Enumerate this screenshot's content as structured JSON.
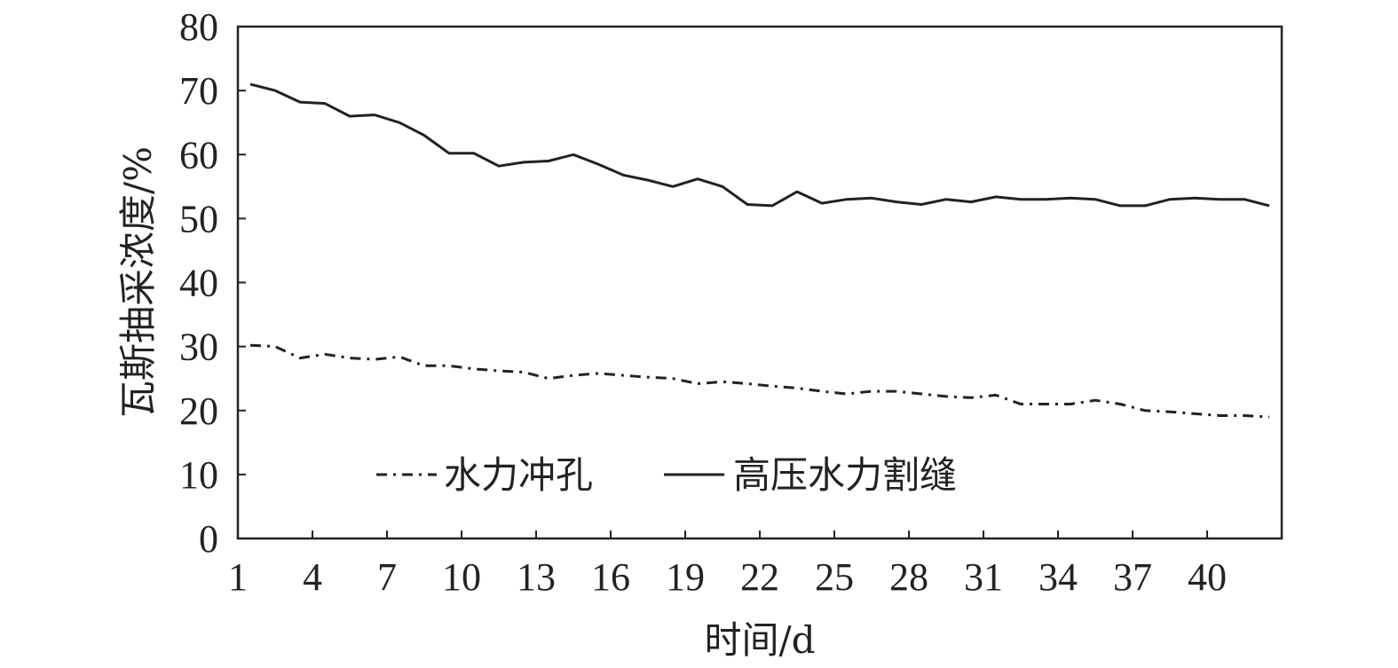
{
  "chart_data": {
    "type": "line",
    "xlabel": "时间/d",
    "ylabel": "瓦斯抽采浓度/%",
    "xlim": [
      1,
      43
    ],
    "ylim": [
      0,
      80
    ],
    "xticks": [
      "1",
      "4",
      "7",
      "10",
      "13",
      "16",
      "19",
      "22",
      "25",
      "28",
      "31",
      "34",
      "37",
      "40"
    ],
    "yticks": [
      "0",
      "10",
      "20",
      "30",
      "40",
      "50",
      "60",
      "70",
      "80"
    ],
    "grid": false,
    "legend_position": "bottom-center, inside plot",
    "x": [
      1.5,
      2.5,
      3.5,
      4.5,
      5.5,
      6.5,
      7.5,
      8.5,
      9.5,
      10.5,
      11.5,
      12.5,
      13.5,
      14.5,
      15.5,
      16.5,
      17.5,
      18.5,
      19.5,
      20.5,
      21.5,
      22.5,
      23.5,
      24.5,
      25.5,
      26.5,
      27.5,
      28.5,
      29.5,
      30.5,
      31.5,
      32.5,
      33.5,
      34.5,
      35.5,
      36.5,
      37.5,
      38.5,
      39.5,
      40.5,
      41.5,
      42.5
    ],
    "series": [
      {
        "name": "水力冲孔",
        "style": "dash-dot",
        "color": "#222222",
        "values": [
          30.2,
          30.0,
          28.2,
          28.8,
          28.2,
          28.0,
          28.4,
          27.0,
          27.0,
          26.5,
          26.2,
          26.0,
          25.0,
          25.5,
          25.8,
          25.5,
          25.2,
          25.0,
          24.2,
          24.5,
          24.2,
          23.8,
          23.5,
          23.0,
          22.6,
          23.0,
          23.0,
          22.6,
          22.2,
          22.0,
          22.4,
          21.0,
          21.0,
          21.0,
          21.6,
          21.0,
          20.0,
          19.8,
          19.5,
          19.2,
          19.2,
          19.0
        ]
      },
      {
        "name": "高压水力割缝",
        "style": "solid",
        "color": "#222222",
        "values": [
          71.0,
          70.0,
          68.2,
          68.0,
          66.0,
          66.2,
          65.0,
          63.0,
          60.2,
          60.2,
          58.2,
          58.8,
          59.0,
          60.0,
          58.5,
          56.8,
          56.0,
          55.0,
          56.2,
          55.0,
          52.2,
          52.0,
          54.2,
          52.4,
          53.0,
          53.2,
          52.6,
          52.2,
          53.0,
          52.6,
          53.4,
          53.0,
          53.0,
          53.2,
          53.0,
          52.0,
          52.0,
          53.0,
          53.2,
          53.0,
          53.0,
          52.0
        ]
      }
    ]
  }
}
